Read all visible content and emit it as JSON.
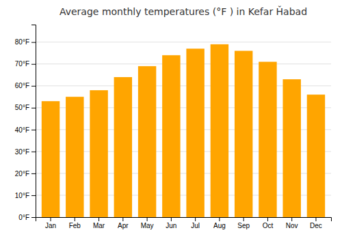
{
  "chart_data": {
    "type": "bar",
    "title": "Average monthly temperatures (°F ) in Kefar Ȟabad",
    "categories": [
      "Jan",
      "Feb",
      "Mar",
      "Apr",
      "May",
      "Jun",
      "Jul",
      "Aug",
      "Sep",
      "Oct",
      "Nov",
      "Dec"
    ],
    "values": [
      53,
      55,
      58,
      64,
      69,
      74,
      77,
      79,
      76,
      71,
      63,
      56
    ],
    "color": "#FFA500",
    "ylim": [
      0,
      88
    ],
    "yticks": [
      {
        "value": 0,
        "label": "0°F"
      },
      {
        "value": 10,
        "label": "10°F"
      },
      {
        "value": 20,
        "label": "20°F"
      },
      {
        "value": 30,
        "label": "30°F"
      },
      {
        "value": 40,
        "label": "40°F"
      },
      {
        "value": 50,
        "label": "50°F"
      },
      {
        "value": 60,
        "label": "60°F"
      },
      {
        "value": 70,
        "label": "70°F"
      },
      {
        "value": 80,
        "label": "80°F"
      }
    ],
    "grid": true
  }
}
